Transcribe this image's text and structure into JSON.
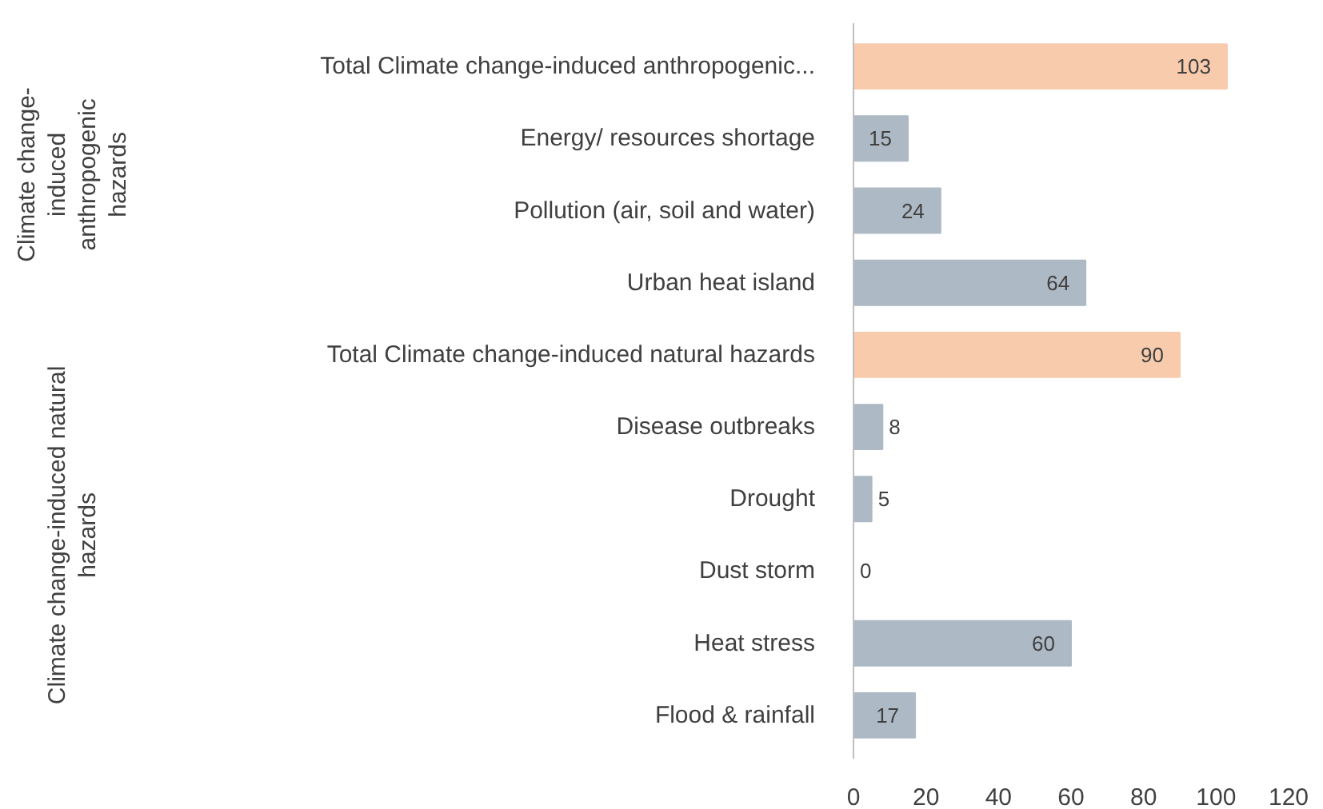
{
  "chart_data": {
    "type": "bar",
    "orientation": "horizontal",
    "categories": [
      "Total Climate change-induced anthropogenic...",
      "Energy/ resources shortage",
      "Pollution (air, soil and water)",
      "Urban heat island",
      "Total Climate change-induced natural hazards",
      "Disease outbreaks",
      "Drought",
      "Dust storm",
      "Heat stress",
      "Flood & rainfall"
    ],
    "values": [
      103,
      15,
      24,
      64,
      90,
      8,
      5,
      0,
      60,
      17
    ],
    "colors": [
      "#f8cbad",
      "#adb9c4",
      "#adb9c4",
      "#adb9c4",
      "#f8cbad",
      "#adb9c4",
      "#adb9c4",
      "#adb9c4",
      "#adb9c4",
      "#adb9c4"
    ],
    "xlim": [
      0,
      120
    ],
    "xticks": [
      0,
      20,
      40,
      60,
      80,
      100,
      120
    ],
    "data_labels": true,
    "grid": false,
    "annotations": [
      "Climate change-induced anthropogenic hazards",
      "Climate change-induced natural hazards"
    ]
  }
}
